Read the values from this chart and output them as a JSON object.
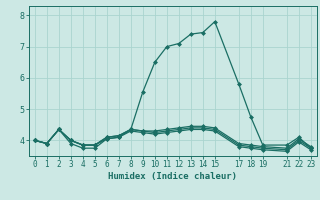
{
  "title": "",
  "xlabel": "Humidex (Indice chaleur)",
  "background_color": "#cce8e4",
  "grid_color": "#aad4cf",
  "line_color": "#1a6e64",
  "series": [
    {
      "x": [
        0,
        1,
        2,
        3,
        4,
        5,
        6,
        7,
        8,
        9,
        10,
        11,
        12,
        13,
        14,
        15,
        17,
        18,
        19,
        21,
        22,
        23
      ],
      "y": [
        4.0,
        3.9,
        4.35,
        3.9,
        3.75,
        3.75,
        4.05,
        4.1,
        4.35,
        5.55,
        6.5,
        7.0,
        7.1,
        7.4,
        7.45,
        7.8,
        5.8,
        4.75,
        3.85,
        3.85,
        4.1,
        3.75
      ]
    },
    {
      "x": [
        0,
        1,
        2,
        3,
        4,
        5,
        6,
        7,
        8,
        9,
        10,
        11,
        12,
        13,
        14,
        15,
        17,
        18,
        19,
        21,
        22,
        23
      ],
      "y": [
        4.0,
        3.9,
        4.35,
        4.0,
        3.85,
        3.85,
        4.1,
        4.15,
        4.35,
        4.3,
        4.3,
        4.35,
        4.4,
        4.45,
        4.45,
        4.4,
        3.9,
        3.85,
        3.8,
        3.75,
        4.05,
        3.8
      ]
    },
    {
      "x": [
        0,
        1,
        2,
        3,
        4,
        5,
        6,
        7,
        8,
        9,
        10,
        11,
        12,
        13,
        14,
        15,
        17,
        18,
        19,
        21,
        22,
        23
      ],
      "y": [
        4.0,
        3.9,
        4.35,
        4.0,
        3.85,
        3.85,
        4.1,
        4.15,
        4.35,
        4.3,
        4.25,
        4.3,
        4.35,
        4.4,
        4.4,
        4.35,
        3.85,
        3.8,
        3.75,
        3.7,
        4.0,
        3.75
      ]
    },
    {
      "x": [
        0,
        1,
        2,
        3,
        4,
        5,
        6,
        7,
        8,
        9,
        10,
        11,
        12,
        13,
        14,
        15,
        17,
        18,
        19,
        21,
        22,
        23
      ],
      "y": [
        4.0,
        3.9,
        4.35,
        4.0,
        3.85,
        3.85,
        4.05,
        4.1,
        4.3,
        4.25,
        4.2,
        4.25,
        4.3,
        4.35,
        4.35,
        4.3,
        3.8,
        3.75,
        3.7,
        3.65,
        3.95,
        3.7
      ]
    }
  ],
  "xlim": [
    -0.5,
    23.5
  ],
  "ylim": [
    3.5,
    8.3
  ],
  "xticks": [
    0,
    1,
    2,
    3,
    4,
    5,
    6,
    7,
    8,
    9,
    10,
    11,
    12,
    13,
    14,
    15,
    17,
    18,
    19,
    21,
    22,
    23
  ],
  "xtick_labels": [
    "0",
    "1",
    "2",
    "3",
    "4",
    "5",
    "6",
    "7",
    "8",
    "9",
    "10",
    "11",
    "12",
    "13",
    "14",
    "15",
    "17",
    "18",
    "19",
    "21",
    "22",
    "23"
  ],
  "yticks": [
    4,
    5,
    6,
    7,
    8
  ],
  "ytick_labels": [
    "4",
    "5",
    "6",
    "7",
    "8"
  ],
  "marker": "D",
  "markersize": 2.0,
  "linewidth": 0.9,
  "tick_fontsize": 5.5,
  "xlabel_fontsize": 6.5
}
